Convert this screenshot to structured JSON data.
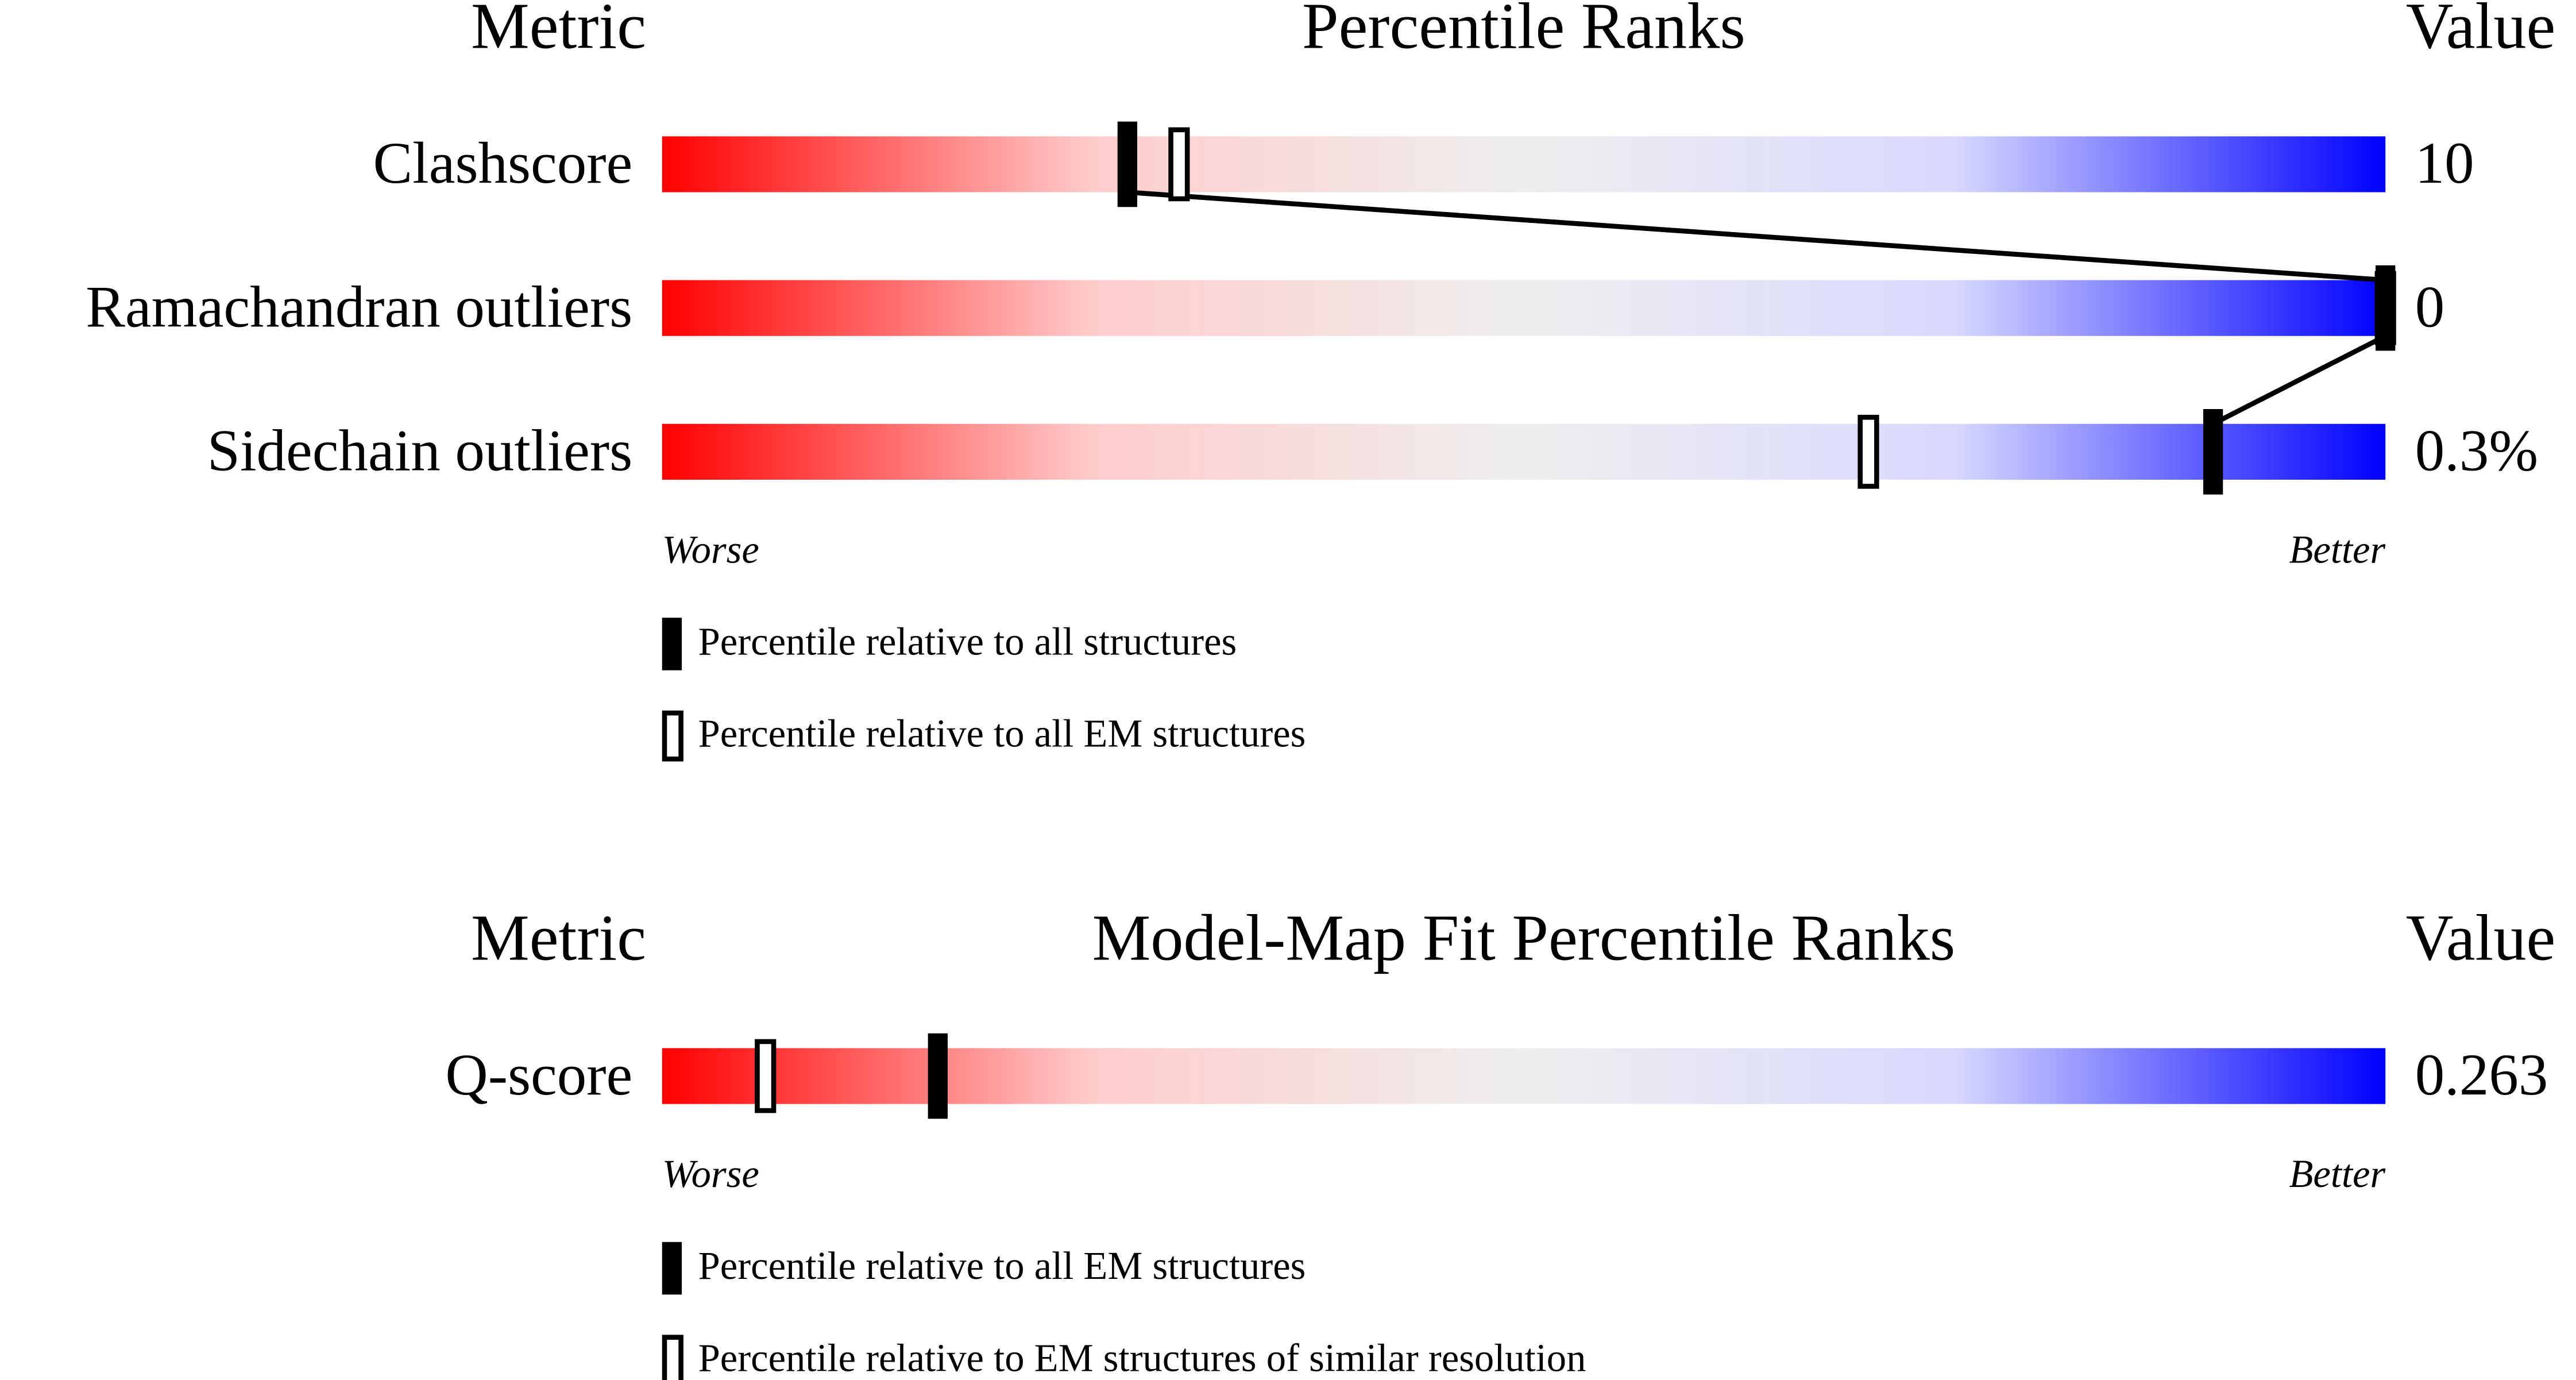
{
  "chart_data": [
    {
      "type": "percentile-slider",
      "title": "Percentile Ranks",
      "metric_header": "Metric",
      "value_header": "Value",
      "categories": [
        "Clashscore",
        "Ramachandran outliers",
        "Sidechain outliers"
      ],
      "metric_values": [
        "10",
        "0",
        "0.3%"
      ],
      "series": [
        {
          "name": "Percentile relative to all structures",
          "style": "filled",
          "color": "#000000",
          "connect": true,
          "values": [
            27,
            100,
            90
          ]
        },
        {
          "name": "Percentile relative to all EM structures",
          "style": "open",
          "color": "#000000",
          "values": [
            30,
            100,
            70
          ]
        }
      ],
      "xlim": [
        0,
        100
      ],
      "low_label": "Worse",
      "high_label": "Better",
      "gradient": [
        "#ff0000",
        "#ffcccc",
        "#eeeeee",
        "#d8d8ff",
        "#0000ff"
      ]
    },
    {
      "type": "percentile-slider",
      "title": "Model-Map Fit Percentile Ranks",
      "metric_header": "Metric",
      "value_header": "Value",
      "categories": [
        "Q-score"
      ],
      "metric_values": [
        "0.263"
      ],
      "series": [
        {
          "name": "Percentile relative to all EM structures",
          "style": "filled",
          "color": "#000000",
          "values": [
            16
          ]
        },
        {
          "name": "Percentile relative to EM structures of similar resolution",
          "style": "open",
          "color": "#000000",
          "values": [
            6
          ]
        }
      ],
      "xlim": [
        0,
        100
      ],
      "low_label": "Worse",
      "high_label": "Better",
      "gradient": [
        "#ff0000",
        "#ffcccc",
        "#eeeeee",
        "#d8d8ff",
        "#0000ff"
      ]
    }
  ]
}
